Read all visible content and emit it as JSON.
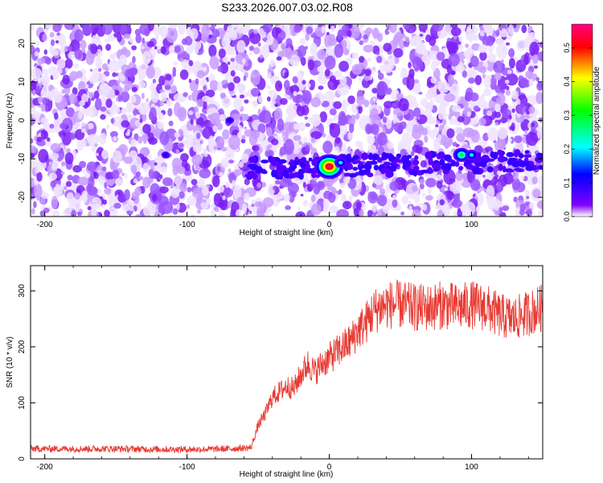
{
  "title": "S233.2026.007.03.02.R08",
  "chart_data": [
    {
      "type": "heatmap",
      "xlabel": "Height of straight line (km)",
      "ylabel": "Frequency (Hz)",
      "xlim": [
        -210,
        150
      ],
      "ylim": [
        -25,
        25
      ],
      "xticks": [
        -200,
        -100,
        0,
        100
      ],
      "yticks": [
        -20,
        -10,
        0,
        10,
        20
      ],
      "colorbar": {
        "label": "Normalized spectral amplitude",
        "range": [
          0.0,
          0.57
        ],
        "ticks": [
          0.0,
          0.1,
          0.2,
          0.3,
          0.4,
          0.5
        ],
        "colors": [
          "#ffffff",
          "#8000ff",
          "#0000ff",
          "#00ffff",
          "#00ff00",
          "#ffff00",
          "#ff0000",
          "#ff0080"
        ]
      },
      "notable_features": [
        {
          "x": 0,
          "y": -12,
          "value": 0.57
        },
        {
          "x": 93,
          "y": -9,
          "value": 0.33
        },
        {
          "x": 100,
          "y": -9,
          "value": 0.2
        },
        {
          "x": 8,
          "y": -11,
          "value": 0.2
        },
        {
          "x": -70,
          "y": 0,
          "value": 0.12
        },
        {
          "x": -115,
          "y": -9,
          "value": 0.13
        }
      ]
    },
    {
      "type": "line",
      "xlabel": "Height of straight line (km)",
      "ylabel": "SNR (10 * v/v)",
      "xlim": [
        -210,
        150
      ],
      "ylim": [
        0,
        345
      ],
      "xticks": [
        -200,
        -100,
        0,
        100
      ],
      "yticks": [
        0,
        100,
        200,
        300
      ],
      "series_color": "#e83a32",
      "x": [
        -210,
        -180,
        -150,
        -120,
        -90,
        -70,
        -55,
        -50,
        -45,
        -40,
        -35,
        -30,
        -25,
        -20,
        -15,
        -10,
        -5,
        0,
        5,
        10,
        15,
        20,
        25,
        30,
        35,
        40,
        50,
        60,
        70,
        80,
        90,
        100,
        110,
        120,
        130,
        140,
        150
      ],
      "y": [
        18,
        18,
        18,
        17,
        17,
        18,
        20,
        60,
        80,
        110,
        120,
        130,
        125,
        150,
        170,
        155,
        170,
        180,
        190,
        200,
        210,
        230,
        240,
        260,
        270,
        275,
        275,
        270,
        270,
        275,
        270,
        275,
        270,
        255,
        250,
        260,
        270
      ]
    }
  ]
}
